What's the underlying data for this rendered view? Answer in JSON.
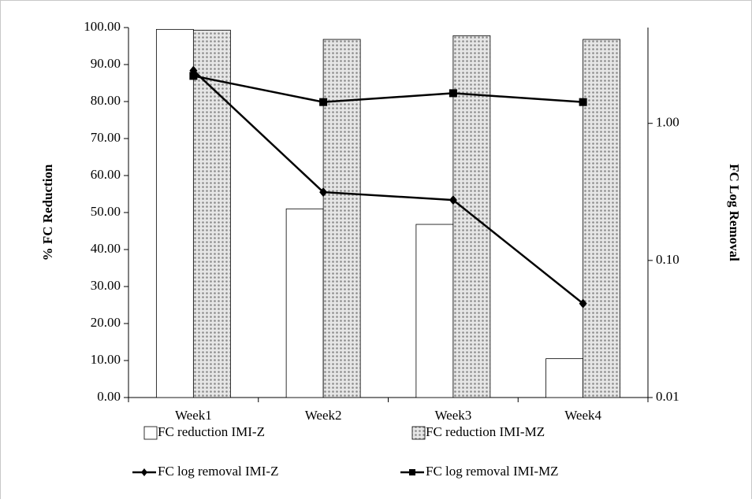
{
  "chart_data": {
    "type": "combo",
    "categories": [
      "Week1",
      "Week2",
      "Week3",
      "Week4"
    ],
    "y_label": "% FC Reduction",
    "y2_label": "FC Log Removal",
    "ylim": [
      0,
      100
    ],
    "yticks": [
      {
        "value": 0,
        "label": "0.00"
      },
      {
        "value": 10,
        "label": "10.00"
      },
      {
        "value": 20,
        "label": "20.00"
      },
      {
        "value": 30,
        "label": "30.00"
      },
      {
        "value": 40,
        "label": "40.00"
      },
      {
        "value": 50,
        "label": "50.00"
      },
      {
        "value": 60,
        "label": "60.00"
      },
      {
        "value": 70,
        "label": "70.00"
      },
      {
        "value": 80,
        "label": "80.00"
      },
      {
        "value": 90,
        "label": "90.00"
      },
      {
        "value": 100,
        "label": "100.00"
      }
    ],
    "y2lim": [
      0.01,
      5
    ],
    "y2_log": true,
    "y2ticks": [
      0.01,
      {
        "value": 0.1,
        "label": "0.10"
      },
      {
        "value": 1,
        "label": "1.00"
      }
    ],
    "series": [
      {
        "name": "FC reduction IMI-Z",
        "type": "bar",
        "color": "#ffffff",
        "values": [
          99.5,
          51.0,
          46.8,
          10.5
        ]
      },
      {
        "name": "FC reduction IMI-MZ",
        "type": "bar",
        "color": "#b8b8b8",
        "pattern": "dots",
        "values": [
          99.3,
          96.8,
          97.8,
          96.8
        ]
      },
      {
        "name": "FC log removal IMI-Z",
        "type": "line",
        "axis": "y2",
        "color": "#000000",
        "marker": "diamond",
        "values": [
          2.43,
          0.315,
          0.276,
          0.0485
        ]
      },
      {
        "name": "FC log removal IMI-MZ",
        "type": "line",
        "axis": "y2",
        "color": "#000000",
        "marker": "square",
        "values": [
          2.22,
          1.43,
          1.66,
          1.43
        ]
      }
    ]
  }
}
